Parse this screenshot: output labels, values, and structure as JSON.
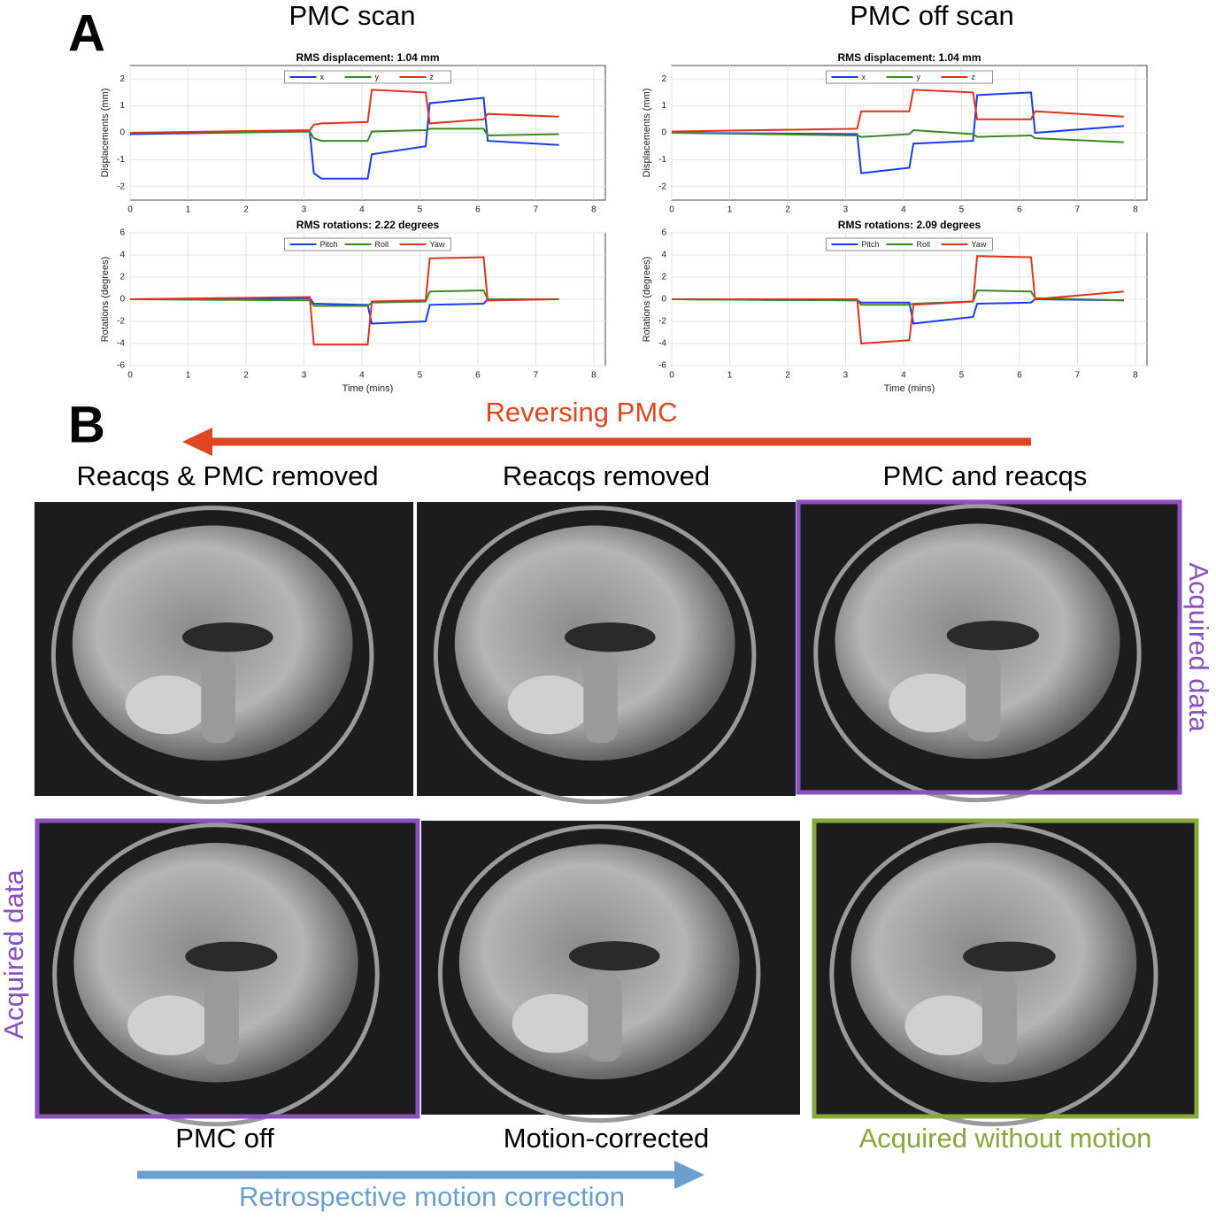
{
  "panel_a": {
    "letter": "A",
    "left_title": "PMC scan",
    "right_title": "PMC off scan"
  },
  "panel_b": {
    "letter": "B",
    "arrow_top": "Reversing  PMC",
    "row1": [
      "Reacqs & PMC removed",
      "Reacqs removed",
      "PMC and reacqs"
    ],
    "row1_side": "Acquired data",
    "row2_side": "Acquired data",
    "row2": [
      "PMC off",
      "Motion-corrected",
      "Acquired without motion"
    ],
    "arrow_bottom": "Retrospective motion correction"
  },
  "chart_data": [
    {
      "type": "line",
      "title": "RMS displacement: 1.04 mm",
      "ylabel": "Displacements (mm)",
      "x": [
        0,
        3.1,
        3.17,
        3.3,
        4.1,
        4.17,
        5.1,
        5.17,
        6.1,
        6.17,
        7.4
      ],
      "series": [
        {
          "name": "x",
          "color": "#1a3ce8",
          "values": [
            -0.05,
            0.05,
            -1.5,
            -1.7,
            -1.7,
            -0.8,
            -0.5,
            1.1,
            1.3,
            -0.3,
            -0.45
          ]
        },
        {
          "name": "y",
          "color": "#3a8a24",
          "values": [
            0,
            0.05,
            -0.2,
            -0.3,
            -0.3,
            0.05,
            0.1,
            0.15,
            0.15,
            -0.1,
            -0.05
          ]
        },
        {
          "name": "z",
          "color": "#e0331f",
          "values": [
            0,
            0.1,
            0.3,
            0.35,
            0.4,
            1.6,
            1.5,
            0.35,
            0.5,
            0.7,
            0.6
          ]
        }
      ],
      "xlim": [
        0,
        8.2
      ],
      "xticks": [
        0,
        1,
        2,
        3,
        4,
        5,
        6,
        7,
        8
      ],
      "ylim": [
        -2.5,
        2.5
      ],
      "yticks": [
        -2,
        -1,
        0,
        1,
        2
      ],
      "grid": true,
      "legend": "top"
    },
    {
      "type": "line",
      "title": "RMS displacement: 1.04 mm",
      "ylabel": "Displacements (mm)",
      "x": [
        0,
        3.2,
        3.27,
        4.1,
        4.17,
        5.2,
        5.27,
        6.2,
        6.27,
        7.8
      ],
      "series": [
        {
          "name": "x",
          "color": "#1a3ce8",
          "values": [
            0,
            -0.05,
            -1.5,
            -1.3,
            -0.4,
            -0.3,
            1.4,
            1.5,
            0,
            0.25
          ]
        },
        {
          "name": "y",
          "color": "#3a8a24",
          "values": [
            0,
            -0.1,
            -0.15,
            -0.05,
            0.1,
            -0.05,
            -0.15,
            -0.1,
            -0.2,
            -0.35
          ]
        },
        {
          "name": "z",
          "color": "#e0331f",
          "values": [
            0.05,
            0.15,
            0.8,
            0.8,
            1.6,
            1.5,
            0.5,
            0.5,
            0.8,
            0.6
          ]
        }
      ],
      "xlim": [
        0,
        8.2
      ],
      "xticks": [
        0,
        1,
        2,
        3,
        4,
        5,
        6,
        7,
        8
      ],
      "ylim": [
        -2.5,
        2.5
      ],
      "yticks": [
        -2,
        -1,
        0,
        1,
        2
      ],
      "grid": true,
      "legend": "top"
    },
    {
      "type": "line",
      "title": "RMS rotations: 2.22 degrees",
      "ylabel": "Rotations (degrees)",
      "xlabel": "Time (mins)",
      "x": [
        0,
        3.1,
        3.17,
        4.1,
        4.17,
        5.1,
        5.17,
        6.1,
        6.17,
        7.4
      ],
      "series": [
        {
          "name": "Pitch",
          "color": "#1a3ce8",
          "values": [
            0,
            0.1,
            -0.4,
            -0.5,
            -2.2,
            -2,
            -0.5,
            -0.4,
            0,
            0
          ]
        },
        {
          "name": "Roll",
          "color": "#3a8a24",
          "values": [
            0,
            -0.1,
            -0.6,
            -0.6,
            -0.3,
            -0.2,
            0.7,
            0.8,
            0,
            0
          ]
        },
        {
          "name": "Yaw",
          "color": "#e0331f",
          "values": [
            0,
            0.2,
            -4.1,
            -4.1,
            -0.2,
            -0.1,
            3.7,
            3.8,
            -0.1,
            0
          ]
        }
      ],
      "xlim": [
        0,
        8.2
      ],
      "xticks": [
        0,
        1,
        2,
        3,
        4,
        5,
        6,
        7,
        8
      ],
      "ylim": [
        -6,
        6
      ],
      "yticks": [
        -6,
        -4,
        -2,
        0,
        2,
        4,
        6
      ],
      "grid": true,
      "legend": "top"
    },
    {
      "type": "line",
      "title": "RMS rotations: 2.09 degrees",
      "ylabel": "Rotations (degrees)",
      "xlabel": "Time (mins)",
      "x": [
        0,
        3.2,
        3.27,
        4.1,
        4.17,
        5.2,
        5.27,
        6.2,
        6.27,
        7.8
      ],
      "series": [
        {
          "name": "Pitch",
          "color": "#1a3ce8",
          "values": [
            0,
            -0.1,
            -0.3,
            -0.3,
            -2.2,
            -1.6,
            -0.4,
            -0.3,
            0,
            -0.1
          ]
        },
        {
          "name": "Roll",
          "color": "#3a8a24",
          "values": [
            0,
            -0.1,
            -0.5,
            -0.5,
            -0.4,
            -0.2,
            0.8,
            0.7,
            0.1,
            -0.1
          ]
        },
        {
          "name": "Yaw",
          "color": "#e0331f",
          "values": [
            0,
            0,
            -4,
            -3.7,
            -0.5,
            -0.2,
            3.9,
            3.8,
            0,
            0.7
          ]
        }
      ],
      "xlim": [
        0,
        8.2
      ],
      "xticks": [
        0,
        1,
        2,
        3,
        4,
        5,
        6,
        7,
        8
      ],
      "ylim": [
        -6,
        6
      ],
      "yticks": [
        -6,
        -4,
        -2,
        0,
        2,
        4,
        6
      ],
      "grid": true,
      "legend": "top"
    }
  ]
}
